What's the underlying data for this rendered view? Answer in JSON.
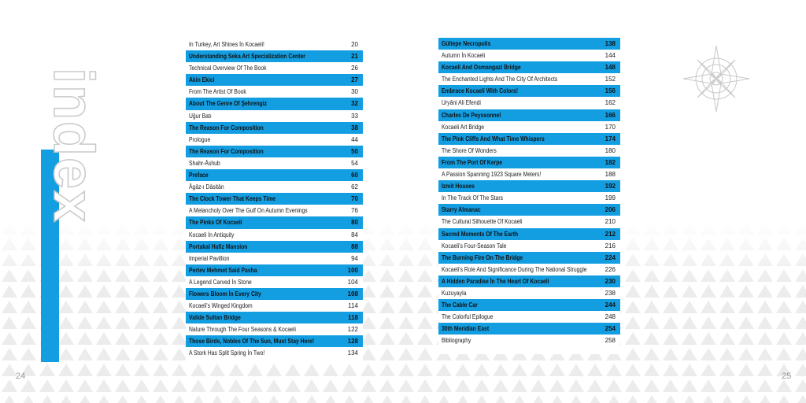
{
  "title": "index",
  "left_page": {
    "number": 24,
    "entries": [
      {
        "title": "In Turkey, Art Shines İn Kocaeli!",
        "page": 20,
        "highlighted": false
      },
      {
        "title": "Understanding Seka Art Specialization Center",
        "page": 21,
        "highlighted": true
      },
      {
        "title": "Technical Overview Of The Book",
        "page": 26,
        "highlighted": false
      },
      {
        "title": "Akin Ekici",
        "page": 27,
        "highlighted": true
      },
      {
        "title": "From The Artist Of Book",
        "page": 30,
        "highlighted": false
      },
      {
        "title": "About The Genre Of Şehrengiz",
        "page": 32,
        "highlighted": true
      },
      {
        "title": "Uğur Batı",
        "page": 33,
        "highlighted": false
      },
      {
        "title": "The Reason For Composition",
        "page": 38,
        "highlighted": true
      },
      {
        "title": "Prologue",
        "page": 44,
        "highlighted": false
      },
      {
        "title": "The Reason For Composition",
        "page": 50,
        "highlighted": true
      },
      {
        "title": "Shahr-Āshub",
        "page": 54,
        "highlighted": false
      },
      {
        "title": "Preface",
        "page": 60,
        "highlighted": true
      },
      {
        "title": "Āgāz-ı Dāsitān",
        "page": 62,
        "highlighted": false
      },
      {
        "title": "The Clock Tower That Keeps Time",
        "page": 70,
        "highlighted": true
      },
      {
        "title": "A Melancholy Over The Gulf On Autumn Evenings",
        "page": 76,
        "highlighted": false
      },
      {
        "title": "The Pinks Of Kocaeli",
        "page": 80,
        "highlighted": true
      },
      {
        "title": "Kocaeli İn Antiquity",
        "page": 84,
        "highlighted": false
      },
      {
        "title": "Portakal Hafiz Mansion",
        "page": 88,
        "highlighted": true
      },
      {
        "title": "Imperial Pavillion",
        "page": 94,
        "highlighted": false
      },
      {
        "title": "Pertev Mehmet Said Pasha",
        "page": 100,
        "highlighted": true
      },
      {
        "title": "A Legend Carved İn Stone",
        "page": 104,
        "highlighted": false
      },
      {
        "title": "Flowers Bloom İn Every City",
        "page": 108,
        "highlighted": true
      },
      {
        "title": "Kocaeli's Winged Kingdom",
        "page": 114,
        "highlighted": false
      },
      {
        "title": "Valide Sultan Bridge",
        "page": 118,
        "highlighted": true
      },
      {
        "title": "Nature Through The Four Seasons & Kocaeli",
        "page": 122,
        "highlighted": false
      },
      {
        "title": "Those Birds, Nobles Of The Sun, Must Stay Here!",
        "page": 128,
        "highlighted": true
      },
      {
        "title": "A Stork Has Split Spring İn Two!",
        "page": 134,
        "highlighted": false
      }
    ]
  },
  "right_page": {
    "number": 25,
    "entries": [
      {
        "title": "Gültepe Necropolis",
        "page": 138,
        "highlighted": true
      },
      {
        "title": "Autumn İn Kocaeli",
        "page": 144,
        "highlighted": false
      },
      {
        "title": "Kocaeli And Osmangazi Bridge",
        "page": 148,
        "highlighted": true
      },
      {
        "title": "The Enchanted Lights And The City Of Architects",
        "page": 152,
        "highlighted": false
      },
      {
        "title": "Embrace Kocaeli With Colors!",
        "page": 156,
        "highlighted": true
      },
      {
        "title": "Uryâni Ali Efendi",
        "page": 162,
        "highlighted": false
      },
      {
        "title": "Charles De Peyssonnel",
        "page": 166,
        "highlighted": true
      },
      {
        "title": "Kocaeli Art Bridge",
        "page": 170,
        "highlighted": false
      },
      {
        "title": "The Pink Cliffs And What Time Whispers",
        "page": 174,
        "highlighted": true
      },
      {
        "title": "The Shore Of Wonders",
        "page": 180,
        "highlighted": false
      },
      {
        "title": "From The Port Of Kerpe",
        "page": 182,
        "highlighted": true
      },
      {
        "title": "A Passion Spanning 1923 Square Meters!",
        "page": 188,
        "highlighted": false
      },
      {
        "title": "Izmit Houses",
        "page": 192,
        "highlighted": true
      },
      {
        "title": "In The Track Of The Stars",
        "page": 199,
        "highlighted": false
      },
      {
        "title": "Starry Almanac",
        "page": 206,
        "highlighted": true
      },
      {
        "title": "The Cultural Silhouette Of Kocaeli",
        "page": 210,
        "highlighted": false
      },
      {
        "title": "Sacred Moments Of The Earth",
        "page": 212,
        "highlighted": true
      },
      {
        "title": "Kocaeli's Four-Season Tale",
        "page": 216,
        "highlighted": false
      },
      {
        "title": "The Burning Fire On The Bridge",
        "page": 224,
        "highlighted": true
      },
      {
        "title": "Kocaeli's Role And Significance During The National Struggle",
        "page": 226,
        "highlighted": false
      },
      {
        "title": "A Hidden Paradise İn The Heart Of Kocaeli",
        "page": 230,
        "highlighted": true
      },
      {
        "title": "Kuzuyayla",
        "page": 238,
        "highlighted": false
      },
      {
        "title": "The Cable Car",
        "page": 244,
        "highlighted": true
      },
      {
        "title": "The Colorful Epilogue",
        "page": 248,
        "highlighted": false
      },
      {
        "title": "30th Meridian East",
        "page": 254,
        "highlighted": true
      },
      {
        "title": "Bibliography",
        "page": 258,
        "highlighted": false
      }
    ]
  }
}
